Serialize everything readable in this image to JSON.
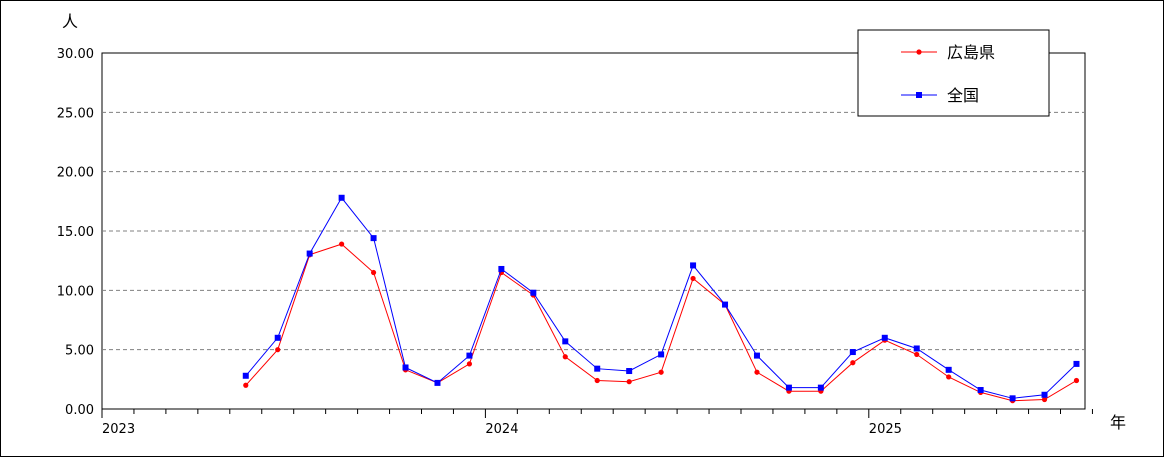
{
  "chart_data": {
    "type": "line",
    "y_unit": "人",
    "x_unit": "年",
    "ylim": [
      0,
      30
    ],
    "y_ticks": [
      "0.00",
      "5.00",
      "10.00",
      "15.00",
      "20.00",
      "25.00",
      "30.00"
    ],
    "grid": "horizontal dashed",
    "legend_position": "top-right",
    "x_labels": [
      "2023",
      "2024",
      "2025"
    ],
    "x": [
      "2023-05",
      "2023-06",
      "2023-07",
      "2023-08",
      "2023-09",
      "2023-10",
      "2023-11",
      "2023-12",
      "2024-01",
      "2024-02",
      "2024-03",
      "2024-04",
      "2024-05",
      "2024-06",
      "2024-07",
      "2024-08",
      "2024-09",
      "2024-10",
      "2024-11",
      "2024-12",
      "2025-01",
      "2025-02",
      "2025-03",
      "2025-04",
      "2025-05",
      "2025-06",
      "2025-07"
    ],
    "series": [
      {
        "name": "広島県",
        "color": "#ff0000",
        "marker": "circle",
        "values": [
          2.0,
          5.0,
          13.0,
          13.9,
          11.5,
          3.3,
          2.2,
          3.8,
          11.5,
          9.6,
          4.4,
          2.4,
          2.3,
          3.1,
          11.0,
          8.8,
          3.1,
          1.5,
          1.5,
          3.9,
          5.8,
          4.6,
          2.7,
          1.4,
          0.7,
          0.8,
          2.4
        ]
      },
      {
        "name": "全国",
        "color": "#0000ff",
        "marker": "square",
        "values": [
          2.8,
          6.0,
          13.1,
          17.8,
          14.4,
          3.5,
          2.2,
          4.5,
          11.8,
          9.8,
          5.7,
          3.4,
          3.2,
          4.6,
          12.1,
          8.8,
          4.5,
          1.8,
          1.8,
          4.8,
          6.0,
          5.1,
          3.3,
          1.6,
          0.9,
          1.2,
          3.8
        ]
      }
    ]
  }
}
